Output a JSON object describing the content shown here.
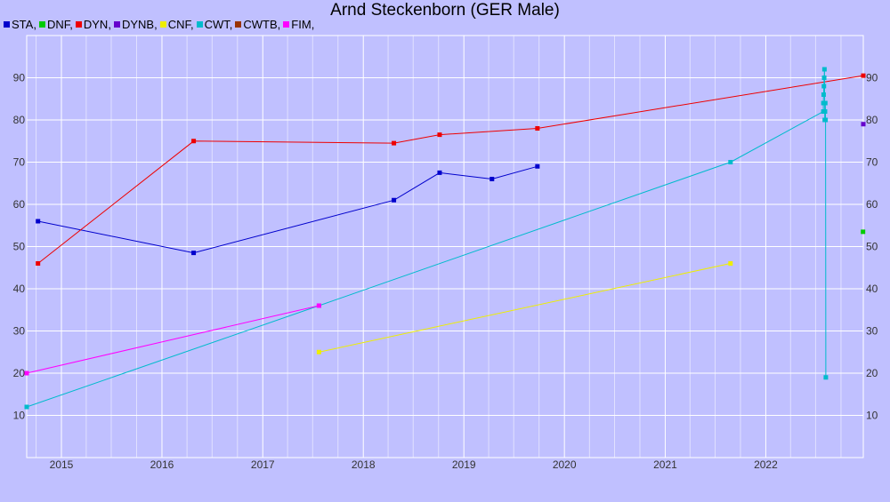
{
  "chart_data": {
    "type": "line",
    "title": "Arnd Steckenborn (GER Male)",
    "xlabel": "",
    "ylabel": "",
    "xlim": [
      "2014-08-28",
      "2022-12-21"
    ],
    "ylim": [
      0,
      100
    ],
    "grid": true,
    "legend_position": "top-left",
    "y_ticks": [
      10,
      20,
      30,
      40,
      50,
      60,
      70,
      80,
      90
    ],
    "x_ticks": [
      "2015",
      "2016",
      "2017",
      "2018",
      "2019",
      "2020",
      "2021",
      "2022"
    ],
    "series": [
      {
        "name": "STA",
        "color": "#0000cc",
        "points": [
          [
            "2014-10-08",
            56
          ],
          [
            "2016-04-25",
            48.5
          ],
          [
            "2018-04-22",
            61
          ],
          [
            "2018-10-05",
            67.5
          ],
          [
            "2019-04-13",
            66
          ],
          [
            "2019-09-25",
            69
          ]
        ]
      },
      {
        "name": "DNF",
        "color": "#00cc00",
        "points": [
          [
            "2022-12-20",
            53.5
          ]
        ]
      },
      {
        "name": "DYN",
        "color": "#ee0000",
        "points": [
          [
            "2014-10-08",
            46
          ],
          [
            "2016-04-25",
            75
          ],
          [
            "2018-04-22",
            74.5
          ],
          [
            "2018-10-05",
            76.5
          ],
          [
            "2019-09-25",
            78
          ],
          [
            "2022-12-21",
            90.5
          ]
        ]
      },
      {
        "name": "DYNB",
        "color": "#6600cc",
        "points": [
          [
            "2022-12-21",
            79
          ]
        ]
      },
      {
        "name": "CNF",
        "color": "#eeee00",
        "points": [
          [
            "2017-07-24",
            25
          ],
          [
            "2021-08-26",
            46
          ]
        ]
      },
      {
        "name": "CWT",
        "color": "#00bbcc",
        "points": [
          [
            "2014-08-28",
            12
          ],
          [
            "2017-07-24",
            36
          ],
          [
            "2021-08-26",
            70
          ],
          [
            "2022-07-29",
            82
          ],
          [
            "2022-07-29",
            84
          ],
          [
            "2022-07-30",
            86
          ],
          [
            "2022-07-31",
            88
          ],
          [
            "2022-08-01",
            90
          ],
          [
            "2022-08-02",
            92
          ],
          [
            "2022-08-03",
            80
          ],
          [
            "2022-08-04",
            82
          ],
          [
            "2022-08-05",
            84
          ],
          [
            "2022-08-06",
            80
          ],
          [
            "2022-08-07",
            19
          ]
        ]
      },
      {
        "name": "CWTB",
        "color": "#993300",
        "points": []
      },
      {
        "name": "FIM",
        "color": "#ff00ff",
        "points": [
          [
            "2014-08-28",
            20
          ],
          [
            "2017-07-24",
            36
          ]
        ]
      }
    ]
  }
}
